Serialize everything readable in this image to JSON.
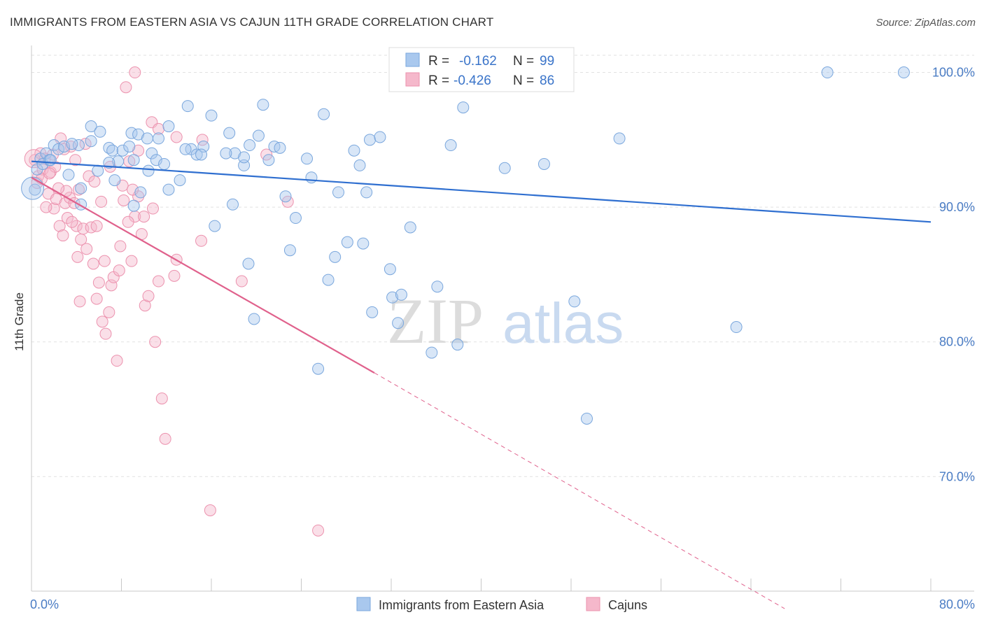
{
  "title": "IMMIGRANTS FROM EASTERN ASIA VS CAJUN 11TH GRADE CORRELATION CHART",
  "source": "Source: ZipAtlas.com",
  "watermark": {
    "zip": "ZIP",
    "atlas": "atlas"
  },
  "colors": {
    "blue_fill": "#a9c8ee",
    "blue_stroke": "#7aa7dd",
    "blue_line": "#2f6fd0",
    "pink_fill": "#f5b8cb",
    "pink_stroke": "#ec92ae",
    "pink_line": "#e0618c",
    "axis_text": "#4a7cc4",
    "grid": "#e2e2e2"
  },
  "legend": {
    "r_label": "R =",
    "n_label": "N =",
    "items": [
      {
        "r": "-0.162",
        "n": "99"
      },
      {
        "r": "-0.426",
        "n": "86"
      }
    ]
  },
  "chart_data": {
    "type": "scatter",
    "title": "IMMIGRANTS FROM EASTERN ASIA VS CAJUN 11TH GRADE CORRELATION CHART",
    "xlabel": "",
    "ylabel": "11th Grade",
    "xlim": [
      0,
      80
    ],
    "ylim": [
      61.5,
      102
    ],
    "x_tick_labels": [
      "0.0%",
      "80.0%"
    ],
    "y_ticks": [
      70,
      80,
      90,
      100
    ],
    "y_tick_labels": [
      "70.0%",
      "80.0%",
      "90.0%",
      "100.0%"
    ],
    "grid": true,
    "legend_position": "top-center",
    "series": [
      {
        "name": "Immigrants from Eastern Asia",
        "color": "#a9c8ee",
        "trend": {
          "x": [
            0,
            80
          ],
          "y": [
            93.4,
            88.9
          ]
        },
        "points": [
          [
            0.5,
            92.8
          ],
          [
            0.8,
            93.6
          ],
          [
            1.0,
            93.2
          ],
          [
            1.3,
            94.0
          ],
          [
            1.6,
            93.5
          ],
          [
            2.0,
            94.6
          ],
          [
            2.4,
            94.3
          ],
          [
            2.9,
            94.5
          ],
          [
            3.3,
            92.4
          ],
          [
            4.2,
            94.6
          ],
          [
            3.6,
            94.7
          ],
          [
            4.4,
            90.2
          ],
          [
            4.4,
            91.4
          ],
          [
            5.3,
            94.9
          ],
          [
            5.3,
            96.0
          ],
          [
            6.1,
            95.6
          ],
          [
            6.9,
            94.4
          ],
          [
            7.2,
            94.2
          ],
          [
            7.4,
            92.0
          ],
          [
            7.7,
            93.4
          ],
          [
            8.1,
            94.2
          ],
          [
            8.9,
            95.5
          ],
          [
            9.5,
            95.4
          ],
          [
            9.1,
            93.5
          ],
          [
            9.7,
            91.1
          ],
          [
            10.3,
            95.1
          ],
          [
            10.7,
            94.0
          ],
          [
            11.1,
            93.5
          ],
          [
            11.3,
            95.1
          ],
          [
            11.8,
            93.2
          ],
          [
            12.2,
            96.0
          ],
          [
            13.2,
            92.0
          ],
          [
            13.9,
            97.5
          ],
          [
            14.2,
            94.3
          ],
          [
            14.7,
            93.9
          ],
          [
            15.3,
            94.5
          ],
          [
            16.0,
            96.8
          ],
          [
            16.3,
            88.6
          ],
          [
            17.6,
            95.5
          ],
          [
            17.9,
            90.2
          ],
          [
            18.1,
            94.0
          ],
          [
            18.9,
            93.1
          ],
          [
            19.3,
            85.8
          ],
          [
            19.4,
            94.6
          ],
          [
            20.2,
            95.3
          ],
          [
            20.6,
            97.6
          ],
          [
            21.1,
            93.5
          ],
          [
            21.6,
            94.5
          ],
          [
            22.6,
            90.8
          ],
          [
            23.0,
            86.8
          ],
          [
            23.5,
            89.2
          ],
          [
            24.5,
            93.6
          ],
          [
            24.9,
            92.2
          ],
          [
            26.0,
            96.9
          ],
          [
            27.0,
            86.3
          ],
          [
            27.3,
            91.1
          ],
          [
            28.7,
            94.2
          ],
          [
            29.2,
            93.1
          ],
          [
            29.5,
            87.3
          ],
          [
            29.8,
            91.1
          ],
          [
            30.1,
            95.0
          ],
          [
            30.3,
            82.2
          ],
          [
            31.0,
            95.2
          ],
          [
            31.9,
            85.4
          ],
          [
            32.1,
            83.3
          ],
          [
            32.6,
            81.4
          ],
          [
            32.9,
            83.5
          ],
          [
            33.7,
            88.5
          ],
          [
            35.6,
            79.2
          ],
          [
            37.3,
            94.6
          ],
          [
            37.9,
            79.8
          ],
          [
            38.4,
            97.4
          ],
          [
            39.7,
            100.0
          ],
          [
            42.1,
            92.9
          ],
          [
            45.6,
            93.2
          ],
          [
            48.3,
            83.0
          ],
          [
            49.4,
            74.3
          ],
          [
            52.3,
            95.1
          ],
          [
            62.7,
            81.1
          ],
          [
            70.8,
            100.0
          ],
          [
            77.6,
            100.0
          ],
          [
            0.3,
            91.3
          ],
          [
            1.7,
            93.5
          ],
          [
            6.9,
            93.3
          ],
          [
            8.7,
            94.5
          ],
          [
            12.2,
            91.3
          ],
          [
            15.1,
            93.9
          ],
          [
            18.9,
            93.7
          ],
          [
            22.1,
            94.4
          ],
          [
            17.3,
            94.0
          ],
          [
            19.8,
            81.7
          ],
          [
            25.5,
            78.0
          ],
          [
            13.7,
            94.3
          ],
          [
            26.4,
            84.6
          ],
          [
            10.4,
            92.7
          ],
          [
            36.1,
            84.1
          ],
          [
            9.1,
            90.1
          ],
          [
            28.1,
            87.4
          ],
          [
            5.9,
            92.7
          ]
        ]
      },
      {
        "name": "Cajuns",
        "color": "#f5b8cb",
        "trend": {
          "x": [
            0,
            30.5
          ],
          "y": [
            92.2,
            77.7
          ]
        },
        "trend_dashed": {
          "x": [
            30.5,
            67
          ],
          "y": [
            77.7,
            60.2
          ]
        },
        "points": [
          [
            0.3,
            93.5
          ],
          [
            0.6,
            92.3
          ],
          [
            0.8,
            94.0
          ],
          [
            1.0,
            92.8
          ],
          [
            1.2,
            93.6
          ],
          [
            1.5,
            91.0
          ],
          [
            1.7,
            92.6
          ],
          [
            2.0,
            89.9
          ],
          [
            2.2,
            90.6
          ],
          [
            2.5,
            88.6
          ],
          [
            2.6,
            95.1
          ],
          [
            2.8,
            87.9
          ],
          [
            3.0,
            90.3
          ],
          [
            3.2,
            89.2
          ],
          [
            3.4,
            90.7
          ],
          [
            3.5,
            94.5
          ],
          [
            3.9,
            93.5
          ],
          [
            4.0,
            88.6
          ],
          [
            4.2,
            91.3
          ],
          [
            4.4,
            87.6
          ],
          [
            4.6,
            88.4
          ],
          [
            4.9,
            86.9
          ],
          [
            5.1,
            92.3
          ],
          [
            5.3,
            88.5
          ],
          [
            5.5,
            85.8
          ],
          [
            5.8,
            83.2
          ],
          [
            6.0,
            84.4
          ],
          [
            6.3,
            81.5
          ],
          [
            6.5,
            86.0
          ],
          [
            6.9,
            82.2
          ],
          [
            7.1,
            84.2
          ],
          [
            7.3,
            84.8
          ],
          [
            7.6,
            78.6
          ],
          [
            7.9,
            87.1
          ],
          [
            8.1,
            91.6
          ],
          [
            8.4,
            98.9
          ],
          [
            8.7,
            93.4
          ],
          [
            8.9,
            86.0
          ],
          [
            9.2,
            89.3
          ],
          [
            9.5,
            90.8
          ],
          [
            9.8,
            88.0
          ],
          [
            10.1,
            82.7
          ],
          [
            10.4,
            83.4
          ],
          [
            10.7,
            96.3
          ],
          [
            11.0,
            80.0
          ],
          [
            11.3,
            84.5
          ],
          [
            11.6,
            75.8
          ],
          [
            11.9,
            72.8
          ],
          [
            12.7,
            84.9
          ],
          [
            12.9,
            86.1
          ],
          [
            15.1,
            87.5
          ],
          [
            15.9,
            67.5
          ],
          [
            18.7,
            84.5
          ],
          [
            20.9,
            93.9
          ],
          [
            22.8,
            90.4
          ],
          [
            25.5,
            66.0
          ],
          [
            0.5,
            91.8
          ],
          [
            1.3,
            90.0
          ],
          [
            2.1,
            93.0
          ],
          [
            3.1,
            91.2
          ],
          [
            4.8,
            94.7
          ],
          [
            5.6,
            91.9
          ],
          [
            6.2,
            90.4
          ],
          [
            7.0,
            93.0
          ],
          [
            8.2,
            90.5
          ],
          [
            9.5,
            94.2
          ],
          [
            2.9,
            94.3
          ],
          [
            4.3,
            83.0
          ],
          [
            3.6,
            88.9
          ],
          [
            10.0,
            89.3
          ],
          [
            5.8,
            88.6
          ],
          [
            7.8,
            85.3
          ],
          [
            10.8,
            89.9
          ],
          [
            8.6,
            88.9
          ],
          [
            9.2,
            100.0
          ],
          [
            4.1,
            86.3
          ],
          [
            1.9,
            93.9
          ],
          [
            15.2,
            95.0
          ],
          [
            11.3,
            95.8
          ],
          [
            2.4,
            91.4
          ],
          [
            3.8,
            90.3
          ],
          [
            6.6,
            80.6
          ],
          [
            0.9,
            92.1
          ],
          [
            1.6,
            92.5
          ],
          [
            9.0,
            91.3
          ],
          [
            12.9,
            95.2
          ]
        ]
      }
    ]
  },
  "bottom_legend": [
    {
      "label": "Immigrants from Eastern Asia"
    },
    {
      "label": "Cajuns"
    }
  ]
}
